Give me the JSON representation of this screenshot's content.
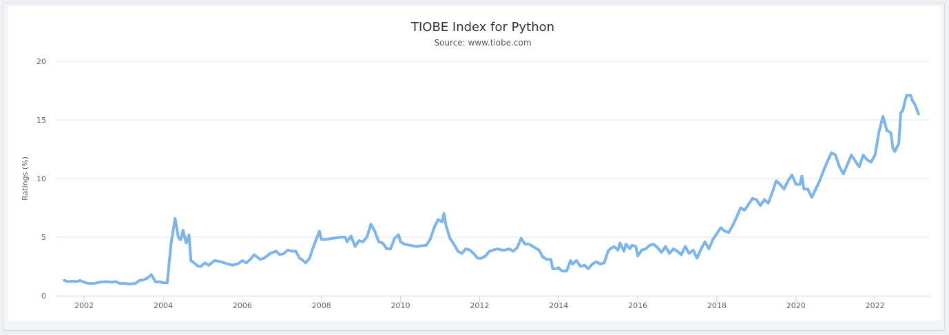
{
  "chart_data": {
    "type": "line",
    "title": "TIOBE Index for Python",
    "subtitle": "Source: www.tiobe.com",
    "xlabel": "",
    "ylabel": "Ratings (%)",
    "ylim": [
      0,
      20
    ],
    "xlim": [
      2001.3,
      2023.4
    ],
    "yticks": [
      "0",
      "5",
      "10",
      "15",
      "20"
    ],
    "xticks": [
      "2002",
      "2004",
      "2006",
      "2008",
      "2010",
      "2012",
      "2014",
      "2016",
      "2018",
      "2020",
      "2022"
    ],
    "grid": "horizontal",
    "colors": {
      "line": "#7cb5ec"
    },
    "series": [
      {
        "x": [
          2001.5,
          2001.6,
          2001.7,
          2001.8,
          2001.9,
          2002.0,
          2002.1,
          2002.25,
          2002.4,
          2002.55,
          2002.7,
          2002.8,
          2002.9,
          2003.0,
          2003.15,
          2003.3,
          2003.4,
          2003.5,
          2003.6,
          2003.7,
          2003.8,
          2003.85,
          2003.9,
          2004.0,
          2004.1,
          2004.2,
          2004.3,
          2004.38,
          2004.42,
          2004.45,
          2004.5,
          2004.58,
          2004.65,
          2004.7,
          2004.78,
          2004.85,
          2004.9,
          2004.95,
          2005.05,
          2005.15,
          2005.3,
          2005.45,
          2005.55,
          2005.65,
          2005.75,
          2005.9,
          2006.0,
          2006.1,
          2006.2,
          2006.3,
          2006.45,
          2006.55,
          2006.7,
          2006.85,
          2006.95,
          2007.05,
          2007.15,
          2007.25,
          2007.35,
          2007.45,
          2007.5,
          2007.6,
          2007.7,
          2007.8,
          2007.95,
          2008.0,
          2008.1,
          2008.3,
          2008.5,
          2008.6,
          2008.65,
          2008.75,
          2008.85,
          2008.95,
          2009.05,
          2009.15,
          2009.25,
          2009.35,
          2009.45,
          2009.55,
          2009.65,
          2009.75,
          2009.85,
          2009.95,
          2010.0,
          2010.1,
          2010.25,
          2010.4,
          2010.5,
          2010.65,
          2010.75,
          2010.85,
          2010.95,
          2011.05,
          2011.1,
          2011.15,
          2011.25,
          2011.35,
          2011.45,
          2011.55,
          2011.65,
          2011.75,
          2011.85,
          2011.95,
          2012.05,
          2012.15,
          2012.25,
          2012.35,
          2012.45,
          2012.55,
          2012.65,
          2012.75,
          2012.85,
          2012.95,
          2013.05,
          2013.15,
          2013.25,
          2013.35,
          2013.5,
          2013.6,
          2013.7,
          2013.8,
          2013.85,
          2013.95,
          2014.0,
          2014.05,
          2014.1,
          2014.2,
          2014.3,
          2014.35,
          2014.45,
          2014.55,
          2014.65,
          2014.75,
          2014.85,
          2014.95,
          2015.05,
          2015.15,
          2015.25,
          2015.3,
          2015.4,
          2015.5,
          2015.55,
          2015.65,
          2015.7,
          2015.8,
          2015.85,
          2015.95,
          2016.0,
          2016.1,
          2016.2,
          2016.3,
          2016.4,
          2016.5,
          2016.6,
          2016.7,
          2016.8,
          2016.9,
          2017.0,
          2017.1,
          2017.2,
          2017.3,
          2017.4,
          2017.5,
          2017.6,
          2017.7,
          2017.8,
          2017.9,
          2018.0,
          2018.1,
          2018.2,
          2018.3,
          2018.4,
          2018.5,
          2018.6,
          2018.7,
          2018.8,
          2018.9,
          2019.0,
          2019.1,
          2019.2,
          2019.3,
          2019.4,
          2019.5,
          2019.6,
          2019.7,
          2019.8,
          2019.9,
          2020.0,
          2020.1,
          2020.15,
          2020.2,
          2020.3,
          2020.4,
          2020.5,
          2020.6,
          2020.7,
          2020.8,
          2020.9,
          2021.0,
          2021.1,
          2021.2,
          2021.3,
          2021.4,
          2021.5,
          2021.6,
          2021.7,
          2021.8,
          2021.9,
          2022.0,
          2022.05,
          2022.1,
          2022.2,
          2022.3,
          2022.4,
          2022.45,
          2022.5,
          2022.6,
          2022.65,
          2022.7,
          2022.75,
          2022.8,
          2022.9,
          2022.95,
          2023.0,
          2023.1
        ],
        "values": [
          1.3,
          1.2,
          1.25,
          1.2,
          1.3,
          1.15,
          1.05,
          1.05,
          1.15,
          1.2,
          1.15,
          1.2,
          1.05,
          1.05,
          1.0,
          1.05,
          1.3,
          1.35,
          1.5,
          1.8,
          1.2,
          1.15,
          1.2,
          1.1,
          1.1,
          4.5,
          6.6,
          5.0,
          4.8,
          4.8,
          5.6,
          4.5,
          5.2,
          3.0,
          2.8,
          2.6,
          2.5,
          2.5,
          2.8,
          2.6,
          3.0,
          2.9,
          2.8,
          2.7,
          2.6,
          2.75,
          3.0,
          2.8,
          3.1,
          3.5,
          3.1,
          3.2,
          3.6,
          3.8,
          3.5,
          3.6,
          3.9,
          3.8,
          3.8,
          3.2,
          3.1,
          2.8,
          3.2,
          4.2,
          5.5,
          4.8,
          4.8,
          4.9,
          5.0,
          5.0,
          4.6,
          5.1,
          4.2,
          4.7,
          4.6,
          5.0,
          6.1,
          5.5,
          4.6,
          4.5,
          4.0,
          4.0,
          4.9,
          5.2,
          4.6,
          4.4,
          4.3,
          4.2,
          4.25,
          4.3,
          4.8,
          5.8,
          6.5,
          6.3,
          7.0,
          6.0,
          4.9,
          4.4,
          3.8,
          3.6,
          4.0,
          3.9,
          3.6,
          3.2,
          3.2,
          3.4,
          3.8,
          3.9,
          4.0,
          3.9,
          3.9,
          4.0,
          3.8,
          4.1,
          4.9,
          4.4,
          4.4,
          4.2,
          3.9,
          3.3,
          3.1,
          3.1,
          2.3,
          2.3,
          2.4,
          2.2,
          2.1,
          2.1,
          3.0,
          2.7,
          3.0,
          2.5,
          2.6,
          2.3,
          2.7,
          2.9,
          2.7,
          2.8,
          3.8,
          4.0,
          4.2,
          3.9,
          4.5,
          3.8,
          4.4,
          4.0,
          4.3,
          4.2,
          3.4,
          3.9,
          4.0,
          4.3,
          4.4,
          4.1,
          3.7,
          4.2,
          3.6,
          4.0,
          3.8,
          3.5,
          4.2,
          3.6,
          3.9,
          3.2,
          4.0,
          4.6,
          4.0,
          4.8,
          5.3,
          5.8,
          5.5,
          5.4,
          6.0,
          6.7,
          7.5,
          7.3,
          7.8,
          8.3,
          8.2,
          7.7,
          8.2,
          7.9,
          8.8,
          9.8,
          9.5,
          9.1,
          9.8,
          10.3,
          9.5,
          9.5,
          10.2,
          9.1,
          9.1,
          8.4,
          9.1,
          9.8,
          10.7,
          11.5,
          12.2,
          12.0,
          11.0,
          10.4,
          11.2,
          12.0,
          11.5,
          11.0,
          12.0,
          11.6,
          11.4,
          12.0,
          13.0,
          14.0,
          15.3,
          14.1,
          13.9,
          12.6,
          12.3,
          13.0,
          15.6,
          15.8,
          16.5,
          17.1,
          17.1,
          16.6,
          16.4,
          15.5
        ]
      }
    ]
  }
}
